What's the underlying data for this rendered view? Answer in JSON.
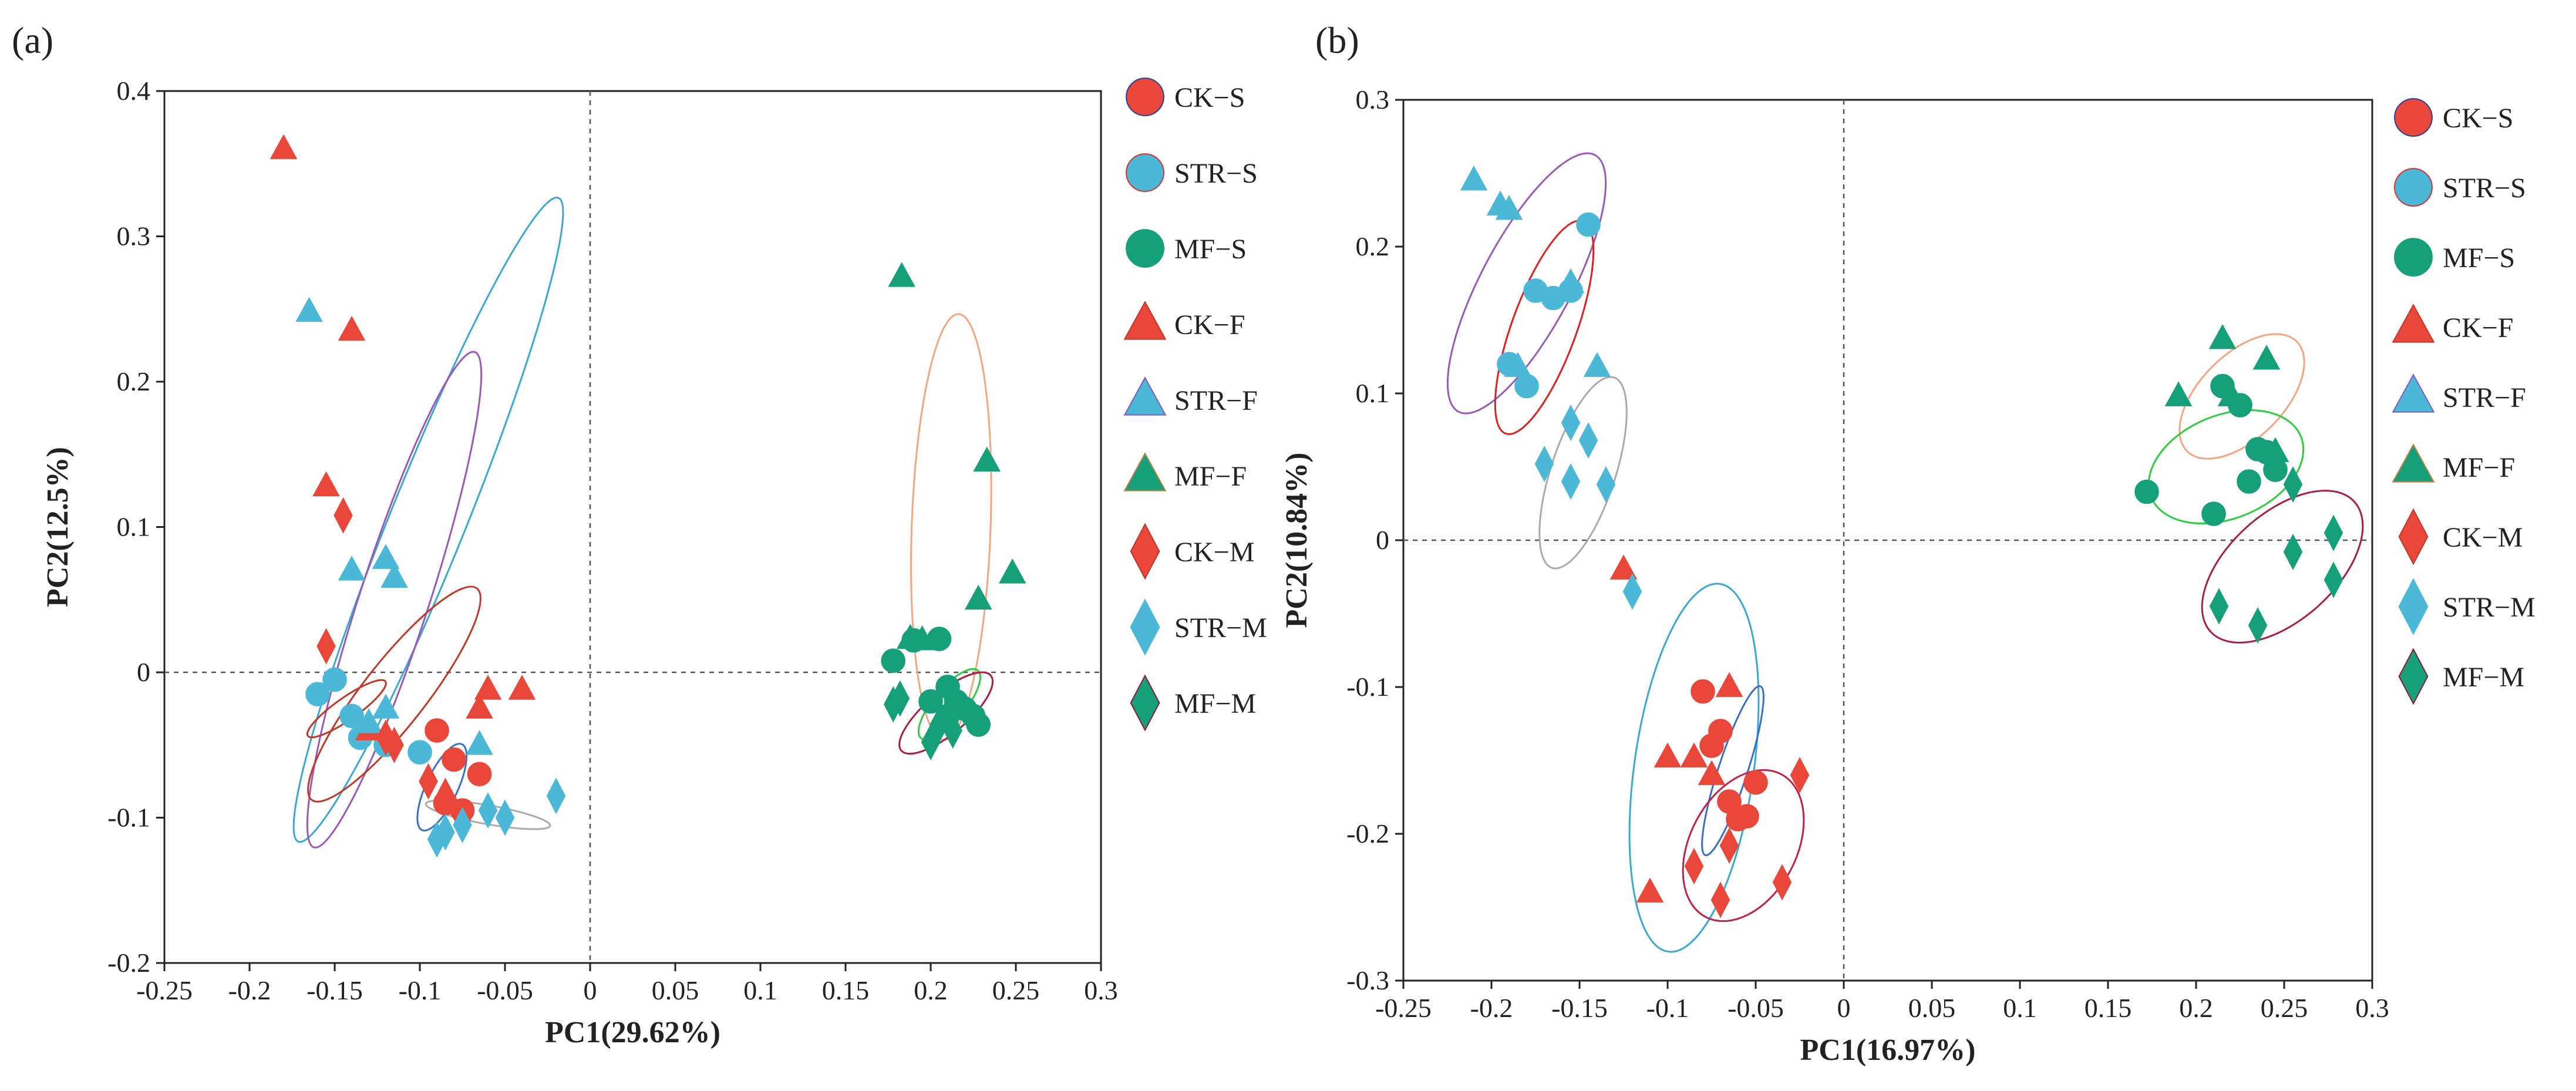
{
  "colors": {
    "CK": "#e8473a",
    "STR": "#4bb8d8",
    "MF": "#16a07a",
    "axis": "#222222",
    "zero_line": "#555555"
  },
  "chart_data": [
    {
      "panel": "(a)",
      "type": "scatter",
      "xlabel": "PC1(29.62%)",
      "ylabel": "PC2(12.5%)",
      "xlim": [
        -0.25,
        0.3
      ],
      "ylim": [
        -0.2,
        0.4
      ],
      "xticks": [
        "-0.25",
        "-0.2",
        "-0.15",
        "-0.1",
        "-0.05",
        "0",
        "0.05",
        "0.1",
        "0.15",
        "0.2",
        "0.25",
        "0.3"
      ],
      "yticks": [
        "-0.2",
        "-0.1",
        "0",
        "0.1",
        "0.2",
        "0.3",
        "0.4"
      ],
      "zero_lines": true,
      "legend": [
        "CK−S",
        "STR−S",
        "MF−S",
        "CK−F",
        "STR−F",
        "MF−F",
        "CK−M",
        "STR−M",
        "MF−M"
      ],
      "series": [
        {
          "name": "CK−S",
          "group": "CK",
          "marker": "circle",
          "points": [
            [
              -0.09,
              -0.04
            ],
            [
              -0.085,
              -0.09
            ],
            [
              -0.075,
              -0.095
            ],
            [
              -0.065,
              -0.07
            ],
            [
              -0.08,
              -0.06
            ]
          ]
        },
        {
          "name": "STR−S",
          "group": "STR",
          "marker": "circle",
          "points": [
            [
              -0.16,
              -0.015
            ],
            [
              -0.15,
              -0.005
            ],
            [
              -0.14,
              -0.03
            ],
            [
              -0.135,
              -0.045
            ],
            [
              -0.12,
              -0.05
            ],
            [
              -0.1,
              -0.055
            ]
          ]
        },
        {
          "name": "MF−S",
          "group": "MF",
          "marker": "circle",
          "points": [
            [
              0.178,
              0.008
            ],
            [
              0.19,
              0.022
            ],
            [
              0.205,
              0.023
            ],
            [
              0.21,
              -0.01
            ],
            [
              0.215,
              -0.02
            ],
            [
              0.22,
              -0.025
            ],
            [
              0.225,
              -0.03
            ],
            [
              0.228,
              -0.036
            ],
            [
              0.21,
              -0.03
            ],
            [
              0.2,
              -0.02
            ]
          ]
        },
        {
          "name": "CK−F",
          "group": "CK",
          "marker": "triangle",
          "points": [
            [
              -0.18,
              0.36
            ],
            [
              -0.14,
              0.235
            ],
            [
              -0.155,
              0.128
            ],
            [
              -0.06,
              -0.012
            ],
            [
              -0.065,
              -0.025
            ],
            [
              -0.04,
              -0.012
            ],
            [
              -0.13,
              -0.04
            ]
          ]
        },
        {
          "name": "STR−F",
          "group": "STR",
          "marker": "triangle",
          "points": [
            [
              -0.165,
              0.248
            ],
            [
              -0.14,
              0.07
            ],
            [
              -0.12,
              0.078
            ],
            [
              -0.115,
              0.065
            ],
            [
              -0.065,
              -0.05
            ],
            [
              -0.12,
              -0.025
            ],
            [
              -0.13,
              -0.035
            ]
          ]
        },
        {
          "name": "MF−F",
          "group": "MF",
          "marker": "triangle",
          "points": [
            [
              0.183,
              0.272
            ],
            [
              0.233,
              0.145
            ],
            [
              0.248,
              0.068
            ],
            [
              0.228,
              0.05
            ],
            [
              0.195,
              0.022
            ],
            [
              0.188,
              0.023
            ]
          ]
        },
        {
          "name": "CK−M",
          "group": "CK",
          "marker": "diamond",
          "points": [
            [
              -0.155,
              0.018
            ],
            [
              -0.145,
              0.108
            ],
            [
              -0.12,
              -0.045
            ],
            [
              -0.115,
              -0.05
            ],
            [
              -0.085,
              -0.085
            ],
            [
              -0.075,
              -0.1
            ],
            [
              -0.095,
              -0.075
            ]
          ]
        },
        {
          "name": "STR−M",
          "group": "STR",
          "marker": "diamond",
          "points": [
            [
              -0.09,
              -0.115
            ],
            [
              -0.085,
              -0.11
            ],
            [
              -0.05,
              -0.1
            ],
            [
              -0.02,
              -0.085
            ],
            [
              -0.06,
              -0.095
            ],
            [
              -0.075,
              -0.105
            ]
          ]
        },
        {
          "name": "MF−M",
          "group": "MF",
          "marker": "diamond",
          "points": [
            [
              0.178,
              -0.022
            ],
            [
              0.182,
              -0.018
            ],
            [
              0.2,
              -0.048
            ],
            [
              0.213,
              -0.04
            ],
            [
              0.205,
              -0.036
            ]
          ]
        }
      ],
      "ellipses": [
        {
          "color": "#3aa9d2",
          "cx": -0.095,
          "cy": 0.105,
          "rx": 0.22,
          "ry": 0.024,
          "angle": -68
        },
        {
          "color": "#9b59b6",
          "cx": -0.115,
          "cy": 0.05,
          "rx": 0.165,
          "ry": 0.022,
          "angle": -72
        },
        {
          "color": "#c0392b",
          "cx": -0.115,
          "cy": -0.015,
          "rx": 0.085,
          "ry": 0.02,
          "angle": -52
        },
        {
          "color": "#3a6fc9",
          "cx": -0.087,
          "cy": -0.079,
          "rx": 0.03,
          "ry": 0.01,
          "angle": -65
        },
        {
          "color": "#c0392b",
          "cx": -0.143,
          "cy": -0.025,
          "rx": 0.03,
          "ry": 0.007,
          "angle": -35
        },
        {
          "color": "#aaaaaa",
          "cx": -0.06,
          "cy": -0.098,
          "rx": 0.04,
          "ry": 0.006,
          "angle": 10
        },
        {
          "color": "#f4a582",
          "cx": 0.212,
          "cy": 0.1,
          "rx": 0.135,
          "ry": 0.025,
          "angle": -88
        },
        {
          "color": "#2ecc40",
          "cx": 0.211,
          "cy": -0.022,
          "rx": 0.028,
          "ry": 0.01,
          "angle": -50
        },
        {
          "color": "#a82040",
          "cx": 0.209,
          "cy": -0.028,
          "rx": 0.037,
          "ry": 0.013,
          "angle": -40
        }
      ]
    },
    {
      "panel": "(b)",
      "type": "scatter",
      "xlabel": "PC1(16.97%)",
      "ylabel": "PC2(10.84%)",
      "xlim": [
        -0.25,
        0.3
      ],
      "ylim": [
        -0.3,
        0.3
      ],
      "xticks": [
        "-0.25",
        "-0.2",
        "-0.15",
        "-0.1",
        "-0.05",
        "0",
        "0.05",
        "0.1",
        "0.15",
        "0.2",
        "0.25",
        "0.3"
      ],
      "yticks": [
        "-0.3",
        "-0.2",
        "-0.1",
        "0",
        "0.1",
        "0.2",
        "0.3"
      ],
      "zero_lines": true,
      "legend": [
        "CK−S",
        "STR−S",
        "MF−S",
        "CK−F",
        "STR−F",
        "MF−F",
        "CK−M",
        "STR−M",
        "MF−M"
      ],
      "series": [
        {
          "name": "CK−S",
          "group": "CK",
          "marker": "circle",
          "points": [
            [
              -0.08,
              -0.103
            ],
            [
              -0.07,
              -0.13
            ],
            [
              -0.065,
              -0.178
            ],
            [
              -0.06,
              -0.19
            ],
            [
              -0.055,
              -0.188
            ],
            [
              -0.05,
              -0.165
            ],
            [
              -0.075,
              -0.14
            ]
          ]
        },
        {
          "name": "STR−S",
          "group": "STR",
          "marker": "circle",
          "points": [
            [
              -0.19,
              0.12
            ],
            [
              -0.18,
              0.105
            ],
            [
              -0.175,
              0.17
            ],
            [
              -0.165,
              0.165
            ],
            [
              -0.155,
              0.17
            ],
            [
              -0.145,
              0.215
            ]
          ]
        },
        {
          "name": "MF−S",
          "group": "MF",
          "marker": "circle",
          "points": [
            [
              0.172,
              0.033
            ],
            [
              0.21,
              0.018
            ],
            [
              0.215,
              0.105
            ],
            [
              0.225,
              0.092
            ],
            [
              0.23,
              0.04
            ],
            [
              0.235,
              0.062
            ],
            [
              0.24,
              0.06
            ],
            [
              0.245,
              0.048
            ]
          ]
        },
        {
          "name": "CK−F",
          "group": "CK",
          "marker": "triangle",
          "points": [
            [
              -0.11,
              -0.24
            ],
            [
              -0.1,
              -0.148
            ],
            [
              -0.085,
              -0.148
            ],
            [
              -0.065,
              -0.1
            ],
            [
              -0.075,
              -0.16
            ],
            [
              -0.125,
              -0.02
            ]
          ]
        },
        {
          "name": "STR−F",
          "group": "STR",
          "marker": "triangle",
          "points": [
            [
              -0.21,
              0.245
            ],
            [
              -0.195,
              0.228
            ],
            [
              -0.19,
              0.225
            ],
            [
              -0.185,
              0.118
            ],
            [
              -0.155,
              0.175
            ],
            [
              -0.14,
              0.118
            ]
          ]
        },
        {
          "name": "MF−F",
          "group": "MF",
          "marker": "triangle",
          "points": [
            [
              0.19,
              0.098
            ],
            [
              0.215,
              0.137
            ],
            [
              0.22,
              0.098
            ],
            [
              0.24,
              0.123
            ],
            [
              0.245,
              0.06
            ]
          ]
        },
        {
          "name": "CK−M",
          "group": "CK",
          "marker": "diamond",
          "points": [
            [
              -0.025,
              -0.16
            ],
            [
              -0.035,
              -0.233
            ],
            [
              -0.07,
              -0.245
            ],
            [
              -0.065,
              -0.208
            ],
            [
              -0.085,
              -0.222
            ]
          ]
        },
        {
          "name": "STR−M",
          "group": "STR",
          "marker": "diamond",
          "points": [
            [
              -0.17,
              0.052
            ],
            [
              -0.155,
              0.08
            ],
            [
              -0.155,
              0.04
            ],
            [
              -0.145,
              0.068
            ],
            [
              -0.135,
              0.038
            ],
            [
              -0.12,
              -0.035
            ]
          ]
        },
        {
          "name": "MF−M",
          "group": "MF",
          "marker": "diamond",
          "points": [
            [
              0.213,
              -0.045
            ],
            [
              0.235,
              -0.058
            ],
            [
              0.255,
              -0.008
            ],
            [
              0.255,
              0.038
            ],
            [
              0.278,
              0.005
            ],
            [
              0.278,
              -0.027
            ]
          ]
        }
      ],
      "ellipses": [
        {
          "color": "#9b59b6",
          "cx": -0.18,
          "cy": 0.175,
          "rx": 0.09,
          "ry": 0.028,
          "angle": -62
        },
        {
          "color": "#e02020",
          "cx": -0.17,
          "cy": 0.145,
          "rx": 0.07,
          "ry": 0.02,
          "angle": -70
        },
        {
          "color": "#aaaaaa",
          "cx": -0.148,
          "cy": 0.046,
          "rx": 0.062,
          "ry": 0.02,
          "angle": -72
        },
        {
          "color": "#3aa9d2",
          "cx": -0.085,
          "cy": -0.155,
          "rx": 0.115,
          "ry": 0.037,
          "angle": -82
        },
        {
          "color": "#3a6fc9",
          "cx": -0.063,
          "cy": -0.157,
          "rx": 0.055,
          "ry": 0.009,
          "angle": -72
        },
        {
          "color": "#c0204a",
          "cx": -0.057,
          "cy": -0.208,
          "rx": 0.05,
          "ry": 0.033,
          "angle": -62
        },
        {
          "color": "#f4a582",
          "cx": 0.226,
          "cy": 0.098,
          "rx": 0.048,
          "ry": 0.026,
          "angle": -45
        },
        {
          "color": "#2ecc40",
          "cx": 0.217,
          "cy": 0.05,
          "rx": 0.05,
          "ry": 0.032,
          "angle": -22
        },
        {
          "color": "#a82040",
          "cx": 0.249,
          "cy": -0.018,
          "rx": 0.06,
          "ry": 0.033,
          "angle": -42
        }
      ]
    }
  ]
}
